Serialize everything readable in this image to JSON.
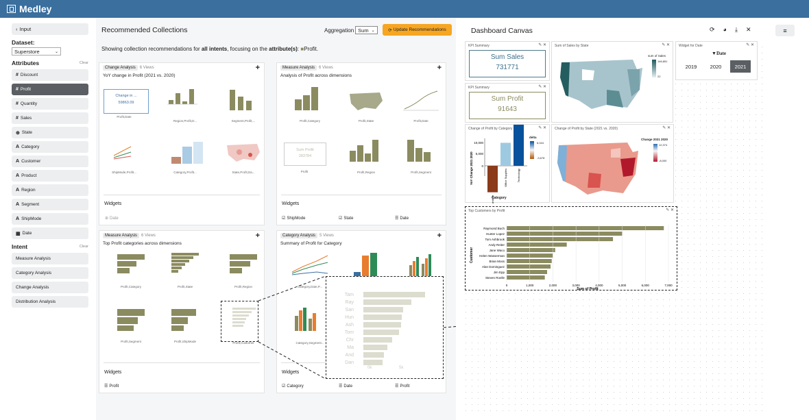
{
  "app": {
    "title": "Medley"
  },
  "sidebar": {
    "back": "Input",
    "dataset_label": "Dataset:",
    "dataset_value": "Superstore",
    "attributes_title": "Attributes",
    "clear": "Clear",
    "attributes": [
      {
        "sym": "#",
        "label": "Discount"
      },
      {
        "sym": "#",
        "label": "Profit"
      },
      {
        "sym": "#",
        "label": "Quantity"
      },
      {
        "sym": "#",
        "label": "Sales"
      },
      {
        "sym": "⊕",
        "label": "State"
      },
      {
        "sym": "A",
        "label": "Category"
      },
      {
        "sym": "A",
        "label": "Customer"
      },
      {
        "sym": "A",
        "label": "Product"
      },
      {
        "sym": "A",
        "label": "Region"
      },
      {
        "sym": "A",
        "label": "Segment"
      },
      {
        "sym": "A",
        "label": "ShipMode"
      },
      {
        "sym": "▦",
        "label": "Date"
      }
    ],
    "intent_title": "Intent",
    "intents": [
      "Measure Analysis",
      "Category Analysis",
      "Change Analysis",
      "Distribution Analysis"
    ]
  },
  "recs": {
    "title": "Recommended Collections",
    "aggregation_label": "Aggregation",
    "aggregation_value": "Sum",
    "update": "Update Recommendations",
    "showing_pre": "Showing collection recommendations for ",
    "showing_b1": "all intents",
    "showing_mid": ", focusing on the ",
    "showing_b2": "attribute(s)",
    ":": "",
    "showing_post": ": ",
    "showing_attr": "Profit.",
    "cards": [
      {
        "tag": "Change Analysis",
        "views": "6 Views",
        "sub": "YoY change in Profit (2021 vs. 2020)",
        "widgets": "Widgets",
        "witems": [
          "Date"
        ],
        "thumbs": [
          "Profit,Date",
          "Region,Profit,D...",
          "Segment,Profit,...",
          "ShipMode,Profit...",
          "Category,Profit...",
          "State,Profit,Da..."
        ]
      },
      {
        "tag": "Measure Analysis",
        "views": "6 Views",
        "sub": "Analysis of Profit across dimensions",
        "widgets": "Widgets",
        "witems": [
          "ShipMode",
          "State",
          "Date"
        ],
        "thumbs": [
          "Profit,Category",
          "Profit,State",
          "Profit,Date",
          "Profit",
          "Profit,Region",
          "Profit,Segment"
        ]
      },
      {
        "tag": "Measure Analysis",
        "views": "6 Views",
        "sub": "Top Profit categories across dimensions",
        "widgets": "Widgets",
        "witems": [
          "Profit"
        ],
        "thumbs": [
          "Profit,Category",
          "Profit,State",
          "Profit,Region",
          "Profit,Segment",
          "Profit,ShipMode",
          "Profit,Customer"
        ]
      },
      {
        "tag": "Category Analysis",
        "views": "5 Views",
        "sub": "Summary of Profit for Category",
        "widgets": "Widgets",
        "witems": [
          "Category",
          "Date",
          "Profit"
        ],
        "thumbs": [
          "Category,Date,P...",
          "",
          "",
          "Category,Segment..."
        ]
      }
    ],
    "kpi_thumb_title": "Change in ...",
    "kpi_thumb_value": "59863.09",
    "sum_profit_thumb": "Sum Profit",
    "sum_profit_thumb_value": "283784",
    "zoom_labels": [
      "Tam",
      "Ray",
      "San",
      "Hun",
      "Ash",
      "Tom",
      "Chr",
      "Ma",
      "And",
      "Dan"
    ],
    "zoom_ticks": [
      "0k",
      "5k"
    ]
  },
  "canvas": {
    "title": "Dashboard Canvas",
    "kpi1": {
      "title": "KPI Summary",
      "label": "Sum Sales",
      "value": "731771"
    },
    "kpi2": {
      "title": "KPI Summary",
      "label": "Sum Profit",
      "value": "91643"
    },
    "map1": {
      "title": "Sum of Sales by State",
      "legend_title": "sum of Sales",
      "legend_max": "146,851",
      "legend_min": "22"
    },
    "widget": {
      "title": "Widget for Date",
      "field": "Date",
      "years": [
        "2019",
        "2020",
        "2021"
      ],
      "selected": "2021"
    },
    "change_cat": {
      "title": "Change of Profit by Category",
      "ylabel": "YoY Change 2021 2020",
      "xlabel": "Category",
      "legend_title": "delta",
      "legend_max": "6,044",
      "legend_min": "-3,678",
      "ticks": [
        "10,000",
        "5,000",
        "0"
      ],
      "cats": [
        "Furniture",
        "Office Supplies",
        "Technology"
      ],
      "values": [
        -3678,
        3200,
        6044
      ]
    },
    "change_state": {
      "title": "Change of Profit by State (2021 vs. 2020)",
      "legend_title": "Change 2021 2020",
      "legend_max": "12,374",
      "legend_min": "-8,000"
    },
    "top_customers": {
      "title": "Top Customers by Profit",
      "ylabel": "Customer",
      "xlabel": "Sum of Profit",
      "ticks": [
        "0",
        "1,000",
        "2,000",
        "3,000",
        "4,000",
        "5,000",
        "6,000",
        "7,000"
      ]
    }
  },
  "chart_data": {
    "type": "bar",
    "title": "Top Customers by Profit",
    "xlabel": "Sum of Profit",
    "ylabel": "Customer",
    "xlim": [
      0,
      7000
    ],
    "categories": [
      "Raymond Buch",
      "Hunter Lopez",
      "Tom Ashbrook",
      "Andy Reiter",
      "Jane Waco",
      "Helen Wasserman",
      "Brian Moss",
      "Alan Dominguez",
      "Jim Epp",
      "Steven Roelle"
    ],
    "values": [
      6800,
      5000,
      4600,
      2600,
      2100,
      2000,
      1950,
      1900,
      1750,
      1650
    ]
  },
  "colors": {
    "bar": "#8b8b60",
    "accent": "#f6a623",
    "topbar": "#3a6f9e"
  }
}
